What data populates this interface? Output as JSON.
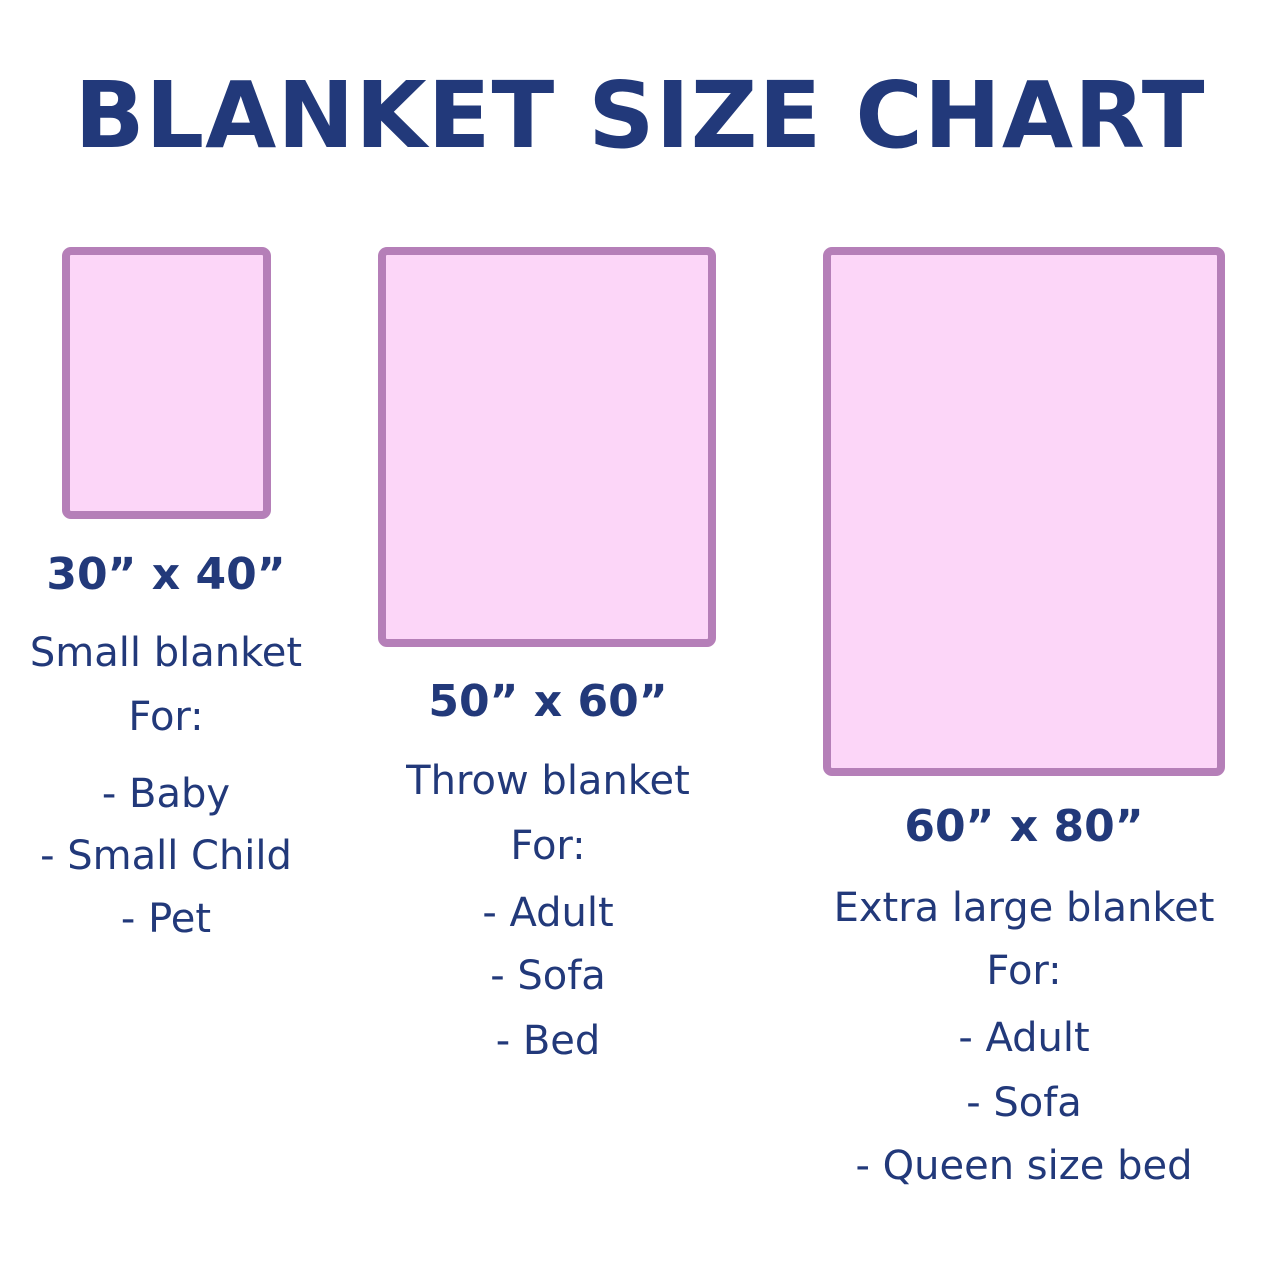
{
  "title": "BLANKET SIZE CHART",
  "colors": {
    "text": "#22397a",
    "blanket_fill": "#fcd6f8",
    "blanket_border": "#b57fb8"
  },
  "blankets": [
    {
      "size": "30” x 40”",
      "name": "Small blanket",
      "for_label": "For:",
      "uses": [
        "- Baby",
        "- Small Child",
        "- Pet"
      ]
    },
    {
      "size": "50” x 60”",
      "name": "Throw blanket",
      "for_label": "For:",
      "uses": [
        "- Adult",
        "- Sofa",
        "- Bed"
      ]
    },
    {
      "size": "60” x 80”",
      "name": "Extra large blanket",
      "for_label": "For:",
      "uses": [
        "- Adult",
        "- Sofa",
        "- Queen size bed"
      ]
    }
  ]
}
